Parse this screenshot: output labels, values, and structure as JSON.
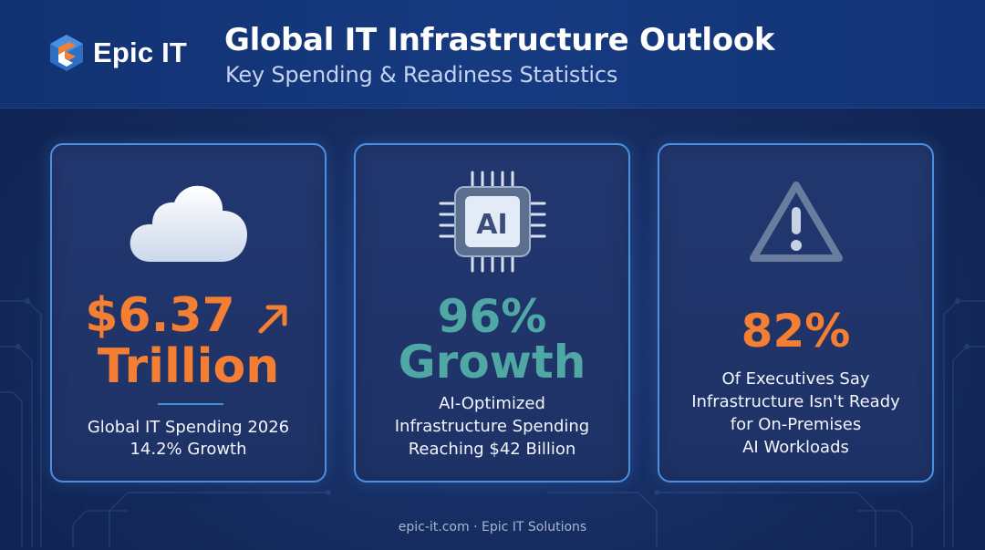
{
  "brand": {
    "name": "Epic IT"
  },
  "header": {
    "title": "Global IT Infrastructure Outlook",
    "subtitle": "Key Spending & Readiness Statistics"
  },
  "cards": [
    {
      "icon": "cloud-icon",
      "value_line1": "$6.37",
      "value_line2": "Trillion",
      "trend_icon": "arrow-up-right-icon",
      "label": "Global IT Spending 2026",
      "sublabel": "14.2% Growth"
    },
    {
      "icon": "ai-chip-icon",
      "icon_text": "AI",
      "value_line1": "96%",
      "value_line2": "Growth",
      "label_line1": "AI-Optimized",
      "label_line2": "Infrastructure Spending",
      "sublabel": "Reaching $42 Billion"
    },
    {
      "icon": "warning-triangle-icon",
      "value_line1": "82%",
      "label_line1": "Of Executives Say",
      "label_line2": "Infrastructure Isn't Ready",
      "label_line3": "for On-Premises",
      "label_line4": "AI Workloads"
    }
  ],
  "footer": {
    "text": "epic-it.com · Epic IT Solutions"
  },
  "colors": {
    "orange": "#f47f33",
    "teal": "#4fa8a4",
    "card_border": "#4a8fe0"
  }
}
